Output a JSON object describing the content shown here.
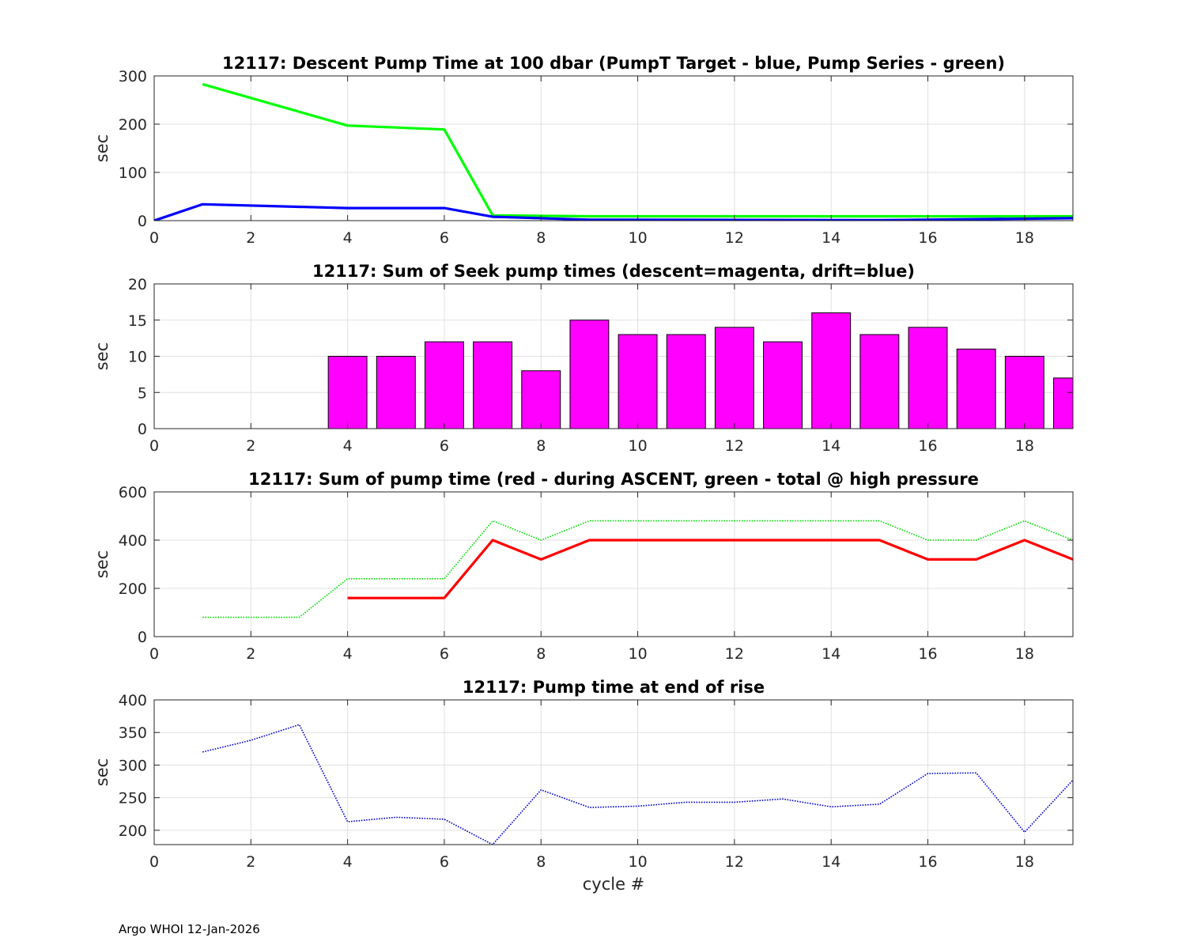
{
  "footer": "Argo WHOI 12-Jan-2026",
  "xlabel": "cycle #",
  "chart_data": [
    {
      "type": "line",
      "title": "12117: Descent Pump Time at 100 dbar (PumpT Target - blue, Pump Series - green)",
      "ylabel": "sec",
      "xlim": [
        0,
        19
      ],
      "ylim": [
        0,
        300
      ],
      "xticks": [
        0,
        2,
        4,
        6,
        8,
        10,
        12,
        14,
        16,
        18
      ],
      "yticks": [
        0,
        100,
        200,
        300
      ],
      "series": [
        {
          "name": "Pump Series",
          "color": "#00ff00",
          "style": "solid",
          "width": 3.2,
          "x": [
            1,
            4,
            6,
            7,
            9,
            19
          ],
          "y": [
            283,
            197,
            189,
            11,
            9,
            9
          ]
        },
        {
          "name": "PumpT Target",
          "color": "#0000ff",
          "style": "solid",
          "width": 3.2,
          "x": [
            0,
            1,
            4,
            6,
            7,
            9,
            15,
            19
          ],
          "y": [
            0,
            34,
            26,
            26,
            8,
            2,
            1,
            5
          ]
        }
      ]
    },
    {
      "type": "bar",
      "title": "12117: Sum of Seek pump times (descent=magenta, drift=blue)",
      "ylabel": "sec",
      "xlim": [
        0,
        19
      ],
      "ylim": [
        0,
        20
      ],
      "xticks": [
        0,
        2,
        4,
        6,
        8,
        10,
        12,
        14,
        16,
        18
      ],
      "yticks": [
        0,
        5,
        10,
        15,
        20
      ],
      "bar_width": 0.8,
      "series": [
        {
          "name": "descent",
          "color": "#ff00ff",
          "x": [
            4,
            5,
            6,
            7,
            8,
            9,
            10,
            11,
            12,
            13,
            14,
            15,
            16,
            17,
            18,
            19
          ],
          "y": [
            10,
            10,
            12,
            12,
            8,
            15,
            13,
            13,
            14,
            12,
            16,
            13,
            14,
            11,
            10,
            7
          ]
        }
      ]
    },
    {
      "type": "line",
      "title": "12117: Sum of pump time (red - during ASCENT, green - total @ high pressure",
      "ylabel": "sec",
      "xlim": [
        0,
        19
      ],
      "ylim": [
        0,
        600
      ],
      "xticks": [
        0,
        2,
        4,
        6,
        8,
        10,
        12,
        14,
        16,
        18
      ],
      "yticks": [
        0,
        200,
        400,
        600
      ],
      "series": [
        {
          "name": "total @ high pressure",
          "color": "#00dd00",
          "style": "dotted",
          "width": 1.6,
          "x": [
            1,
            2,
            3,
            4,
            5,
            6,
            7,
            8,
            9,
            10,
            11,
            12,
            13,
            14,
            15,
            16,
            17,
            18,
            19
          ],
          "y": [
            80,
            80,
            80,
            240,
            240,
            240,
            480,
            400,
            480,
            480,
            480,
            480,
            480,
            480,
            480,
            400,
            400,
            480,
            400
          ]
        },
        {
          "name": "during ASCENT",
          "color": "#ff0000",
          "style": "solid",
          "width": 3.2,
          "x": [
            4,
            5,
            6,
            7,
            8,
            9,
            10,
            11,
            12,
            13,
            14,
            15,
            16,
            17,
            18,
            19
          ],
          "y": [
            160,
            160,
            160,
            400,
            320,
            400,
            400,
            400,
            400,
            400,
            400,
            400,
            320,
            320,
            400,
            320
          ]
        }
      ]
    },
    {
      "type": "line",
      "title": "12117: Pump time at end of rise",
      "ylabel": "sec",
      "xlim": [
        0,
        19
      ],
      "ylim": [
        178,
        400
      ],
      "xticks": [
        0,
        2,
        4,
        6,
        8,
        10,
        12,
        14,
        16,
        18
      ],
      "yticks": [
        200,
        250,
        300,
        350,
        400
      ],
      "series": [
        {
          "name": "end of rise",
          "color": "#0000cc",
          "style": "dotted",
          "width": 1.6,
          "x": [
            1,
            2,
            3,
            4,
            5,
            6,
            7,
            8,
            9,
            10,
            11,
            12,
            13,
            14,
            15,
            16,
            17,
            18,
            19
          ],
          "y": [
            320,
            338,
            362,
            213,
            220,
            217,
            178,
            262,
            235,
            237,
            243,
            243,
            248,
            236,
            240,
            287,
            288,
            197,
            277
          ]
        }
      ]
    }
  ]
}
